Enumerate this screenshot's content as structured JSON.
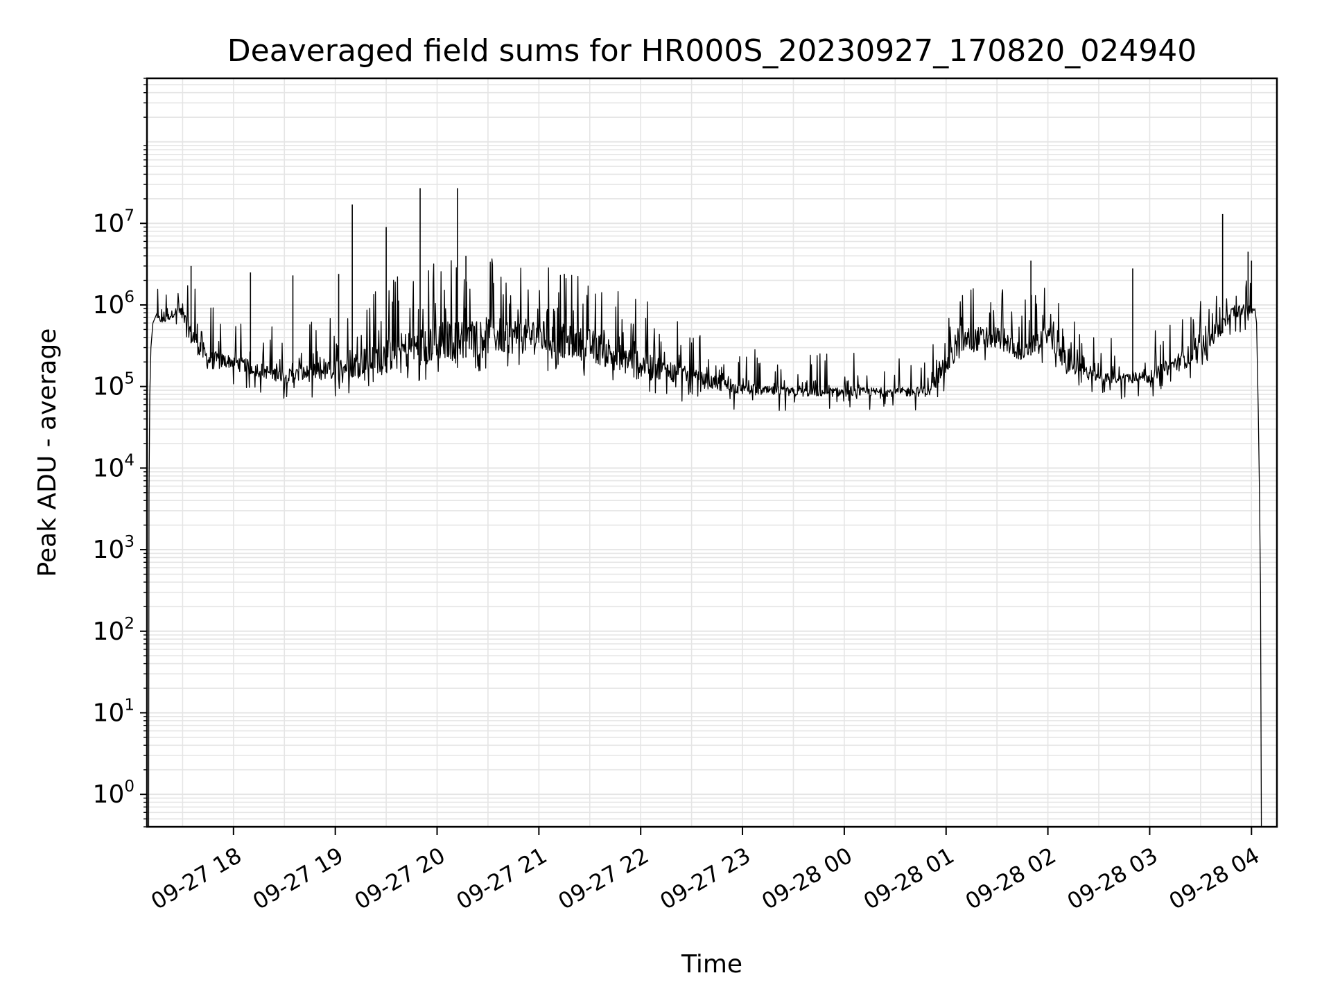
{
  "chart_data": {
    "type": "line",
    "title": "Deaveraged field sums for HR000S_20230927_170820_024940",
    "xlabel": "Time",
    "ylabel": "Peak ADU - average",
    "yscale": "log",
    "ylim": [
      0.4,
      600000000
    ],
    "xlim": [
      "2023-09-27T17:09:00",
      "2023-09-28T04:15:00"
    ],
    "grid": true,
    "line_color": "#000000",
    "grid_color": "#e5e5e5",
    "x_ticks": [
      {
        "value": "2023-09-27T18:00:00",
        "label": "09-27 18"
      },
      {
        "value": "2023-09-27T19:00:00",
        "label": "09-27 19"
      },
      {
        "value": "2023-09-27T20:00:00",
        "label": "09-27 20"
      },
      {
        "value": "2023-09-27T21:00:00",
        "label": "09-27 21"
      },
      {
        "value": "2023-09-27T22:00:00",
        "label": "09-27 22"
      },
      {
        "value": "2023-09-27T23:00:00",
        "label": "09-27 23"
      },
      {
        "value": "2023-09-28T00:00:00",
        "label": "09-28 00"
      },
      {
        "value": "2023-09-28T01:00:00",
        "label": "09-28 01"
      },
      {
        "value": "2023-09-28T02:00:00",
        "label": "09-28 02"
      },
      {
        "value": "2023-09-28T03:00:00",
        "label": "09-28 03"
      },
      {
        "value": "2023-09-28T04:00:00",
        "label": "09-28 04"
      }
    ],
    "y_ticks": [
      {
        "value": 1,
        "base": "10",
        "exp": "0"
      },
      {
        "value": 10,
        "base": "10",
        "exp": "1"
      },
      {
        "value": 100,
        "base": "10",
        "exp": "2"
      },
      {
        "value": 1000,
        "base": "10",
        "exp": "3"
      },
      {
        "value": 10000,
        "base": "10",
        "exp": "4"
      },
      {
        "value": 100000,
        "base": "10",
        "exp": "5"
      },
      {
        "value": 1000000,
        "base": "10",
        "exp": "6"
      },
      {
        "value": 10000000,
        "base": "10",
        "exp": "7"
      }
    ],
    "envelope": [
      {
        "t": "2023-09-27T17:20:00",
        "base": 600000,
        "top": 900000
      },
      {
        "t": "2023-09-27T17:28:00",
        "base": 800000,
        "top": 1200000
      },
      {
        "t": "2023-09-27T17:36:00",
        "base": 300000,
        "top": 1000000
      },
      {
        "t": "2023-09-27T17:45:00",
        "base": 160000,
        "top": 450000
      },
      {
        "t": "2023-09-27T18:00:00",
        "base": 170000,
        "top": 320000
      },
      {
        "t": "2023-09-27T18:15:00",
        "base": 130000,
        "top": 280000
      },
      {
        "t": "2023-09-27T18:30:00",
        "base": 110000,
        "top": 220000
      },
      {
        "t": "2023-09-27T19:00:00",
        "base": 120000,
        "top": 350000
      },
      {
        "t": "2023-09-27T19:30:00",
        "base": 150000,
        "top": 900000
      },
      {
        "t": "2023-09-27T20:00:00",
        "base": 200000,
        "top": 1600000
      },
      {
        "t": "2023-09-27T20:30:00",
        "base": 250000,
        "top": 1700000
      },
      {
        "t": "2023-09-27T21:00:00",
        "base": 250000,
        "top": 1500000
      },
      {
        "t": "2023-09-27T21:30:00",
        "base": 200000,
        "top": 1100000
      },
      {
        "t": "2023-09-27T22:00:00",
        "base": 120000,
        "top": 600000
      },
      {
        "t": "2023-09-27T22:30:00",
        "base": 100000,
        "top": 250000
      },
      {
        "t": "2023-09-27T23:00:00",
        "base": 80000,
        "top": 130000
      },
      {
        "t": "2023-09-27T23:30:00",
        "base": 75000,
        "top": 120000
      },
      {
        "t": "2023-09-28T00:00:00",
        "base": 75000,
        "top": 120000
      },
      {
        "t": "2023-09-28T00:30:00",
        "base": 75000,
        "top": 120000
      },
      {
        "t": "2023-09-28T00:50:00",
        "base": 75000,
        "top": 130000
      },
      {
        "t": "2023-09-28T01:10:00",
        "base": 250000,
        "top": 1000000
      },
      {
        "t": "2023-09-28T01:30:00",
        "base": 300000,
        "top": 900000
      },
      {
        "t": "2023-09-28T01:45:00",
        "base": 200000,
        "top": 500000
      },
      {
        "t": "2023-09-28T02:00:00",
        "base": 350000,
        "top": 900000
      },
      {
        "t": "2023-09-28T02:10:00",
        "base": 150000,
        "top": 400000
      },
      {
        "t": "2023-09-28T02:30:00",
        "base": 110000,
        "top": 180000
      },
      {
        "t": "2023-09-28T03:00:00",
        "base": 110000,
        "top": 200000
      },
      {
        "t": "2023-09-28T03:30:00",
        "base": 200000,
        "top": 700000
      },
      {
        "t": "2023-09-28T03:50:00",
        "base": 700000,
        "top": 1400000
      },
      {
        "t": "2023-09-28T04:00:00",
        "base": 800000,
        "top": 1200000
      }
    ],
    "spikes": [
      {
        "t": "2023-09-27T17:35:00",
        "y": 3000000
      },
      {
        "t": "2023-09-27T18:10:00",
        "y": 2500000
      },
      {
        "t": "2023-09-27T18:35:00",
        "y": 2300000
      },
      {
        "t": "2023-09-27T19:02:00",
        "y": 2400000
      },
      {
        "t": "2023-09-27T19:10:00",
        "y": 17000000
      },
      {
        "t": "2023-09-27T19:30:00",
        "y": 9000000
      },
      {
        "t": "2023-09-27T19:50:00",
        "y": 27000000
      },
      {
        "t": "2023-09-27T20:12:00",
        "y": 27000000
      },
      {
        "t": "2023-09-27T20:17:00",
        "y": 4000000
      },
      {
        "t": "2023-09-27T21:15:00",
        "y": 2400000
      },
      {
        "t": "2023-09-28T01:50:00",
        "y": 3500000
      },
      {
        "t": "2023-09-28T02:50:00",
        "y": 2800000
      },
      {
        "t": "2023-09-28T03:43:00",
        "y": 13000000
      },
      {
        "t": "2023-09-28T03:58:00",
        "y": 4500000
      },
      {
        "t": "2023-09-28T04:00:00",
        "y": 3500000
      }
    ],
    "rise": [
      {
        "t": "2023-09-27T17:10:00",
        "y": 0.4
      },
      {
        "t": "2023-09-27T17:10:12",
        "y": 5000
      },
      {
        "t": "2023-09-27T17:10:40",
        "y": 80000
      },
      {
        "t": "2023-09-27T17:11:20",
        "y": 300000
      },
      {
        "t": "2023-09-27T17:12:30",
        "y": 600000
      },
      {
        "t": "2023-09-27T17:15:00",
        "y": 800000
      }
    ],
    "fall": [
      {
        "t": "2023-09-28T04:02:00",
        "y": 900000
      },
      {
        "t": "2023-09-28T04:03:00",
        "y": 600000
      },
      {
        "t": "2023-09-28T04:04:00",
        "y": 50000
      },
      {
        "t": "2023-09-28T04:04:40",
        "y": 6000
      },
      {
        "t": "2023-09-28T04:05:20",
        "y": 300
      },
      {
        "t": "2023-09-28T04:05:50",
        "y": 0.4
      }
    ]
  }
}
